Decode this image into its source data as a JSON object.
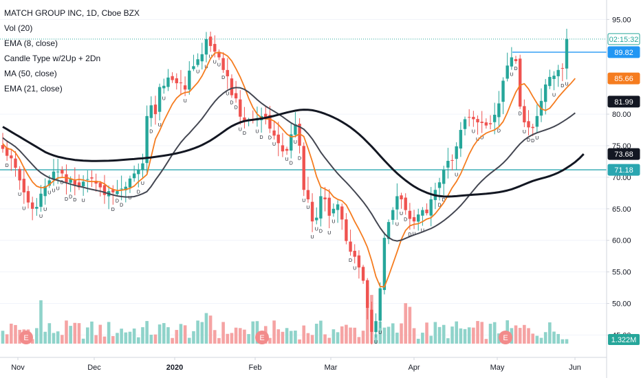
{
  "legend": {
    "title": "MATCH GROUP INC, 1D, Cboe BZX",
    "vol": "Vol (20)",
    "ema8": "EMA (8, close)",
    "candle_type": "Candle Type w/2Up + 2Dn",
    "ma50": "MA (50, close)",
    "ema21": "EMA (21, close)"
  },
  "colors": {
    "up": "#26a69a",
    "down": "#ef5350",
    "vol_up": "#8fd3ca",
    "vol_down": "#f5a3a3",
    "ema8": "#f57c1f",
    "ma50": "#131722",
    "ema21": "#434651",
    "hline": "#2ba6b0",
    "level_line": "#2196f3"
  },
  "price_axis": {
    "ticks": [
      "95.00",
      "80.00",
      "75.00",
      "70.00",
      "65.00",
      "60.00",
      "55.00",
      "50.00",
      "45.00"
    ],
    "labels": [
      {
        "text": "02:15:32",
        "value": 91.9,
        "bg": "#ffffff",
        "fg": "#26a69a",
        "border": "#26a69a"
      },
      {
        "text": "89.82",
        "value": 89.82,
        "bg": "#2196f3",
        "fg": "#ffffff",
        "border": "#2196f3"
      },
      {
        "text": "85.66",
        "value": 85.66,
        "bg": "#f57c1f",
        "fg": "#ffffff",
        "border": "#f57c1f"
      },
      {
        "text": "81.99",
        "value": 81.99,
        "bg": "#131722",
        "fg": "#ffffff",
        "border": "#131722"
      },
      {
        "text": "73.68",
        "value": 73.68,
        "bg": "#131722",
        "fg": "#ffffff",
        "border": "#131722"
      },
      {
        "text": "71.18",
        "value": 71.18,
        "bg": "#2ba6b0",
        "fg": "#ffffff",
        "border": "#2ba6b0"
      }
    ],
    "volume_label": "1.322M"
  },
  "time_axis": [
    "Nov",
    "Dec",
    "2020",
    "Feb",
    "Mar",
    "Apr",
    "May",
    "Jun"
  ],
  "earnings_marker": "E",
  "candle_marks": {
    "up": "U",
    "down": "D",
    "neutral": "o"
  },
  "chart_data": {
    "type": "candlestick",
    "title": "MATCH GROUP INC, 1D, Cboe BZX",
    "ylim": [
      42,
      97
    ],
    "horizontal_line": 71.18,
    "level_line": 89.82,
    "last_price": 91.9,
    "series": [
      {
        "name": "EMA (8, close)",
        "values": [
          75.34,
          74.55,
          74.43,
          73.89,
          72.85,
          71.5,
          70.32,
          69.26,
          68.59,
          68.35,
          68.4,
          68.85,
          69.44,
          69.9,
          69.98,
          69.94,
          69.77,
          69.55,
          69.66,
          69.58,
          69.37,
          69.32,
          69.33,
          69.26,
          68.94,
          68.39,
          68.07,
          67.91,
          67.94,
          68.06,
          68.25,
          68.61,
          69.29,
          69.85,
          70.43,
          73.26,
          76.07,
          77.39,
          78.93,
          80.28,
          81.59,
          82.55,
          83.14,
          83.43,
          83.53,
          84.27,
          85.02,
          86.05,
          87.38,
          88.8,
          89.67,
          89.8,
          89.62,
          89.21,
          88.43,
          87.21,
          85.87,
          84.31,
          82.5,
          81.03,
          80.02,
          79.41,
          79.25,
          79.23,
          78.9,
          78.33,
          77.6,
          76.85,
          76.41,
          76.48,
          76.88,
          76.47,
          74.58,
          72.5,
          70.15,
          68.44,
          68.13,
          67.77,
          66.91,
          66.49,
          66.28,
          65.62,
          64.35,
          62.99,
          61.76,
          60.41,
          58.9,
          56.77,
          54.26,
          52.69,
          52.62,
          54.36,
          56.25,
          58.18,
          60.15,
          61.57,
          62.3,
          62.54,
          62.64,
          62.97,
          63.38,
          63.58,
          64.24,
          65.07,
          65.98,
          67.13,
          68.35,
          69.31,
          70.56,
          72.09,
          73.66,
          74.95,
          75.88,
          76.52,
          76.99,
          77.26,
          77.5,
          78.0,
          78.81,
          80.26,
          81.92,
          83.48,
          84.59,
          84.82,
          84.0,
          82.81,
          81.71,
          80.85,
          80.59,
          80.94,
          81.77,
          82.68,
          83.44,
          84.19,
          84.89,
          85.66
        ]
      },
      {
        "name": "EMA (21, close)",
        "values": [
          76.25,
          75.72,
          75.31,
          74.83,
          74.21,
          73.48,
          72.74,
          71.99,
          71.29,
          70.71,
          70.27,
          69.93,
          69.69,
          69.5,
          69.3,
          69.11,
          68.91,
          68.7,
          68.56,
          68.41,
          68.23,
          68.07,
          67.93,
          67.79,
          67.61,
          67.39,
          67.2,
          67.04,
          66.94,
          66.88,
          66.87,
          66.94,
          67.14,
          67.4,
          67.73,
          68.55,
          69.57,
          70.48,
          71.47,
          72.53,
          73.6,
          74.6,
          75.51,
          76.3,
          76.98,
          77.73,
          78.48,
          79.29,
          80.19,
          81.14,
          82.0,
          82.72,
          83.31,
          83.78,
          84.09,
          84.21,
          84.17,
          83.92,
          83.48,
          82.91,
          82.3,
          81.74,
          81.25,
          80.85,
          80.45,
          80.03,
          79.58,
          79.08,
          78.62,
          78.25,
          77.99,
          77.61,
          76.92,
          76.07,
          75.04,
          73.97,
          73.06,
          72.22,
          71.38,
          70.58,
          69.87,
          69.2,
          68.47,
          67.71,
          66.92,
          66.1,
          65.2,
          64.18,
          63.05,
          61.98,
          61.07,
          60.43,
          60.05,
          59.91,
          60.04,
          60.32,
          60.6,
          60.86,
          61.09,
          61.34,
          61.62,
          61.88,
          62.24,
          62.65,
          63.12,
          63.65,
          64.22,
          64.84,
          65.53,
          66.29,
          67.11,
          67.93,
          68.73,
          69.44,
          70.07,
          70.62,
          71.14,
          71.66,
          72.25,
          72.94,
          73.72,
          74.54,
          75.31,
          75.91,
          76.39,
          76.76,
          77.05,
          77.28,
          77.51,
          77.74,
          78.03,
          78.38,
          78.78,
          79.22,
          79.68,
          80.2
        ]
      },
      {
        "name": "MA (50, close)",
        "values": [
          78.0,
          77.6,
          77.2,
          76.8,
          76.4,
          76.0,
          75.6,
          75.2,
          74.8,
          74.4,
          74.0,
          73.7,
          73.45,
          73.25,
          73.1,
          72.95,
          72.85,
          72.75,
          72.68,
          72.63,
          72.6,
          72.58,
          72.58,
          72.59,
          72.6,
          72.62,
          72.65,
          72.69,
          72.74,
          72.79,
          72.84,
          72.89,
          72.95,
          73.0,
          73.07,
          73.14,
          73.23,
          73.32,
          73.42,
          73.53,
          73.65,
          73.79,
          73.94,
          74.12,
          74.32,
          74.55,
          74.81,
          75.11,
          75.46,
          75.83,
          76.26,
          76.72,
          77.2,
          77.68,
          78.09,
          78.42,
          78.7,
          78.9,
          79.03,
          79.12,
          79.2,
          79.3,
          79.42,
          79.57,
          79.73,
          79.91,
          80.09,
          80.26,
          80.41,
          80.55,
          80.66,
          80.71,
          80.69,
          80.62,
          80.48,
          80.29,
          80.05,
          79.79,
          79.49,
          79.16,
          78.78,
          78.37,
          77.91,
          77.4,
          76.84,
          76.22,
          75.56,
          74.87,
          74.14,
          73.4,
          72.66,
          71.95,
          71.26,
          70.62,
          70.04,
          69.5,
          69.0,
          68.55,
          68.16,
          67.83,
          67.55,
          67.31,
          67.13,
          67.02,
          66.95,
          66.94,
          66.96,
          67.01,
          67.07,
          67.13,
          67.18,
          67.23,
          67.28,
          67.33,
          67.39,
          67.46,
          67.54,
          67.64,
          67.76,
          67.91,
          68.1,
          68.33,
          68.6,
          68.88,
          69.15,
          69.41,
          69.62,
          69.8,
          69.98,
          70.19,
          70.44,
          70.73,
          71.07,
          71.48,
          71.93,
          72.41,
          73.0,
          73.68
        ]
      }
    ],
    "closes": [
      74.5,
      73.4,
      73.0,
      71.5,
      69.5,
      67.6,
      66.0,
      65.0,
      65.3,
      67.4,
      68.6,
      69.5,
      70.9,
      70.9,
      70.6,
      69.2,
      69.7,
      68.8,
      68.4,
      69.3,
      69.7,
      69.8,
      69.0,
      68.4,
      67.2,
      67.8,
      67.6,
      67.8,
      68.2,
      68.5,
      69.8,
      70.6,
      71.2,
      72.2,
      79.7,
      81.4,
      80.0,
      84.3,
      84.5,
      85.8,
      85.4,
      84.9,
      84.9,
      83.9,
      86.9,
      87.6,
      88.7,
      89.5,
      91.9,
      90.8,
      89.9,
      89.0,
      87.0,
      86.0,
      83.0,
      82.5,
      79.6,
      78.9,
      79.0,
      79.0,
      79.2,
      79.7,
      79.5,
      77.7,
      76.6,
      75.4,
      74.1,
      74.2,
      76.8,
      78.4,
      75.0,
      68.0,
      66.5,
      63.0,
      63.6,
      67.0,
      66.5,
      63.9,
      65.0,
      65.7,
      63.3,
      59.9,
      58.2,
      57.4,
      55.7,
      53.6,
      49.3,
      45.5,
      47.2,
      52.4,
      60.4,
      62.9,
      64.8,
      67.0,
      66.5,
      64.8,
      63.4,
      63.0,
      64.1,
      64.8,
      64.3,
      66.5,
      68.0,
      69.2,
      71.2,
      72.6,
      72.7,
      74.9,
      77.5,
      79.2,
      79.5,
      79.2,
      78.7,
      78.6,
      78.2,
      78.4,
      79.9,
      81.7,
      85.3,
      87.7,
      89.0,
      88.4,
      81.2,
      78.7,
      77.9,
      77.8,
      79.7,
      82.1,
      84.7,
      85.9,
      86.1,
      87.0,
      87.3,
      91.9
    ],
    "x_range": [
      "2019-10-25",
      "2020-05-29"
    ]
  }
}
